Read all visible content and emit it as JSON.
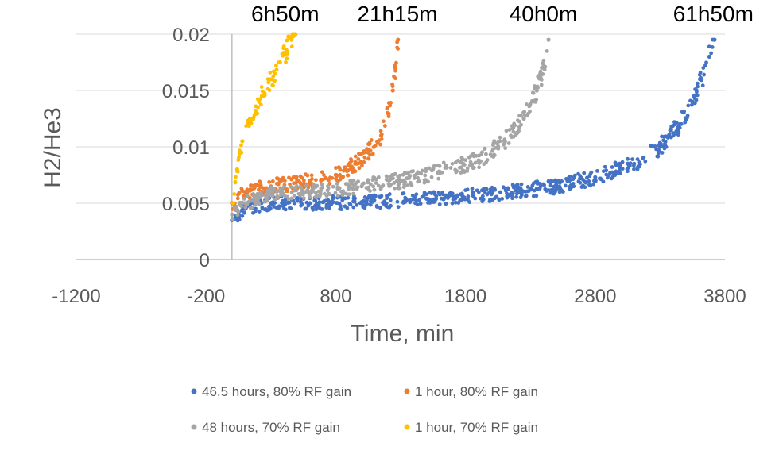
{
  "chart_data": {
    "type": "scatter",
    "title": "",
    "xlabel": "Time, min",
    "ylabel": "H2/He3",
    "xlim": [
      -1200,
      3800
    ],
    "ylim": [
      0,
      0.02
    ],
    "x_ticks": [
      -1200,
      -200,
      800,
      1800,
      2800,
      3800
    ],
    "x_tick_labels": [
      "-1200",
      "-200",
      "800",
      "1800",
      "2800",
      "3800"
    ],
    "y_ticks": [
      0,
      0.005,
      0.01,
      0.015,
      0.02
    ],
    "y_tick_labels": [
      "0",
      "0.005",
      "0.01",
      "0.015",
      "0.02"
    ],
    "grid": "horizontal major gridlines",
    "legend_position": "bottom",
    "annotations": [
      {
        "text": "6h50m",
        "x": 410
      },
      {
        "text": "21h15m",
        "x": 1275
      },
      {
        "text": "40h0m",
        "x": 2400
      },
      {
        "text": "61h50m",
        "x": 3710
      }
    ],
    "series": [
      {
        "name": "46.5 hours, 80% RF gain",
        "color": "#4472C4",
        "points": [
          [
            0,
            0.0035
          ],
          [
            100,
            0.0045
          ],
          [
            300,
            0.005
          ],
          [
            600,
            0.005
          ],
          [
            1000,
            0.0051
          ],
          [
            1500,
            0.0054
          ],
          [
            2000,
            0.0058
          ],
          [
            2500,
            0.0065
          ],
          [
            2800,
            0.0073
          ],
          [
            3100,
            0.0085
          ],
          [
            3300,
            0.01
          ],
          [
            3450,
            0.012
          ],
          [
            3550,
            0.014
          ],
          [
            3620,
            0.016
          ],
          [
            3680,
            0.018
          ],
          [
            3720,
            0.0195
          ]
        ]
      },
      {
        "name": "1 hour, 80% RF gain",
        "color": "#ED7D31",
        "points": [
          [
            0,
            0.005
          ],
          [
            100,
            0.006
          ],
          [
            300,
            0.0065
          ],
          [
            600,
            0.007
          ],
          [
            800,
            0.0075
          ],
          [
            950,
            0.0085
          ],
          [
            1050,
            0.0095
          ],
          [
            1150,
            0.011
          ],
          [
            1200,
            0.013
          ],
          [
            1240,
            0.015
          ],
          [
            1260,
            0.017
          ],
          [
            1280,
            0.0195
          ]
        ]
      },
      {
        "name": "48 hours, 70% RF gain",
        "color": "#A5A5A5",
        "points": [
          [
            0,
            0.004
          ],
          [
            100,
            0.005
          ],
          [
            300,
            0.0058
          ],
          [
            600,
            0.006
          ],
          [
            1000,
            0.0065
          ],
          [
            1300,
            0.007
          ],
          [
            1600,
            0.0078
          ],
          [
            1900,
            0.0088
          ],
          [
            2100,
            0.0105
          ],
          [
            2250,
            0.0125
          ],
          [
            2350,
            0.015
          ],
          [
            2400,
            0.017
          ],
          [
            2440,
            0.0195
          ]
        ]
      },
      {
        "name": "1 hour, 70% RF gain",
        "color": "#FFC000",
        "points": [
          [
            10,
            0.005
          ],
          [
            40,
            0.008
          ],
          [
            80,
            0.0105
          ],
          [
            150,
            0.0125
          ],
          [
            230,
            0.0145
          ],
          [
            300,
            0.016
          ],
          [
            370,
            0.0175
          ],
          [
            420,
            0.0185
          ],
          [
            460,
            0.0195
          ],
          [
            490,
            0.02
          ]
        ]
      }
    ]
  }
}
